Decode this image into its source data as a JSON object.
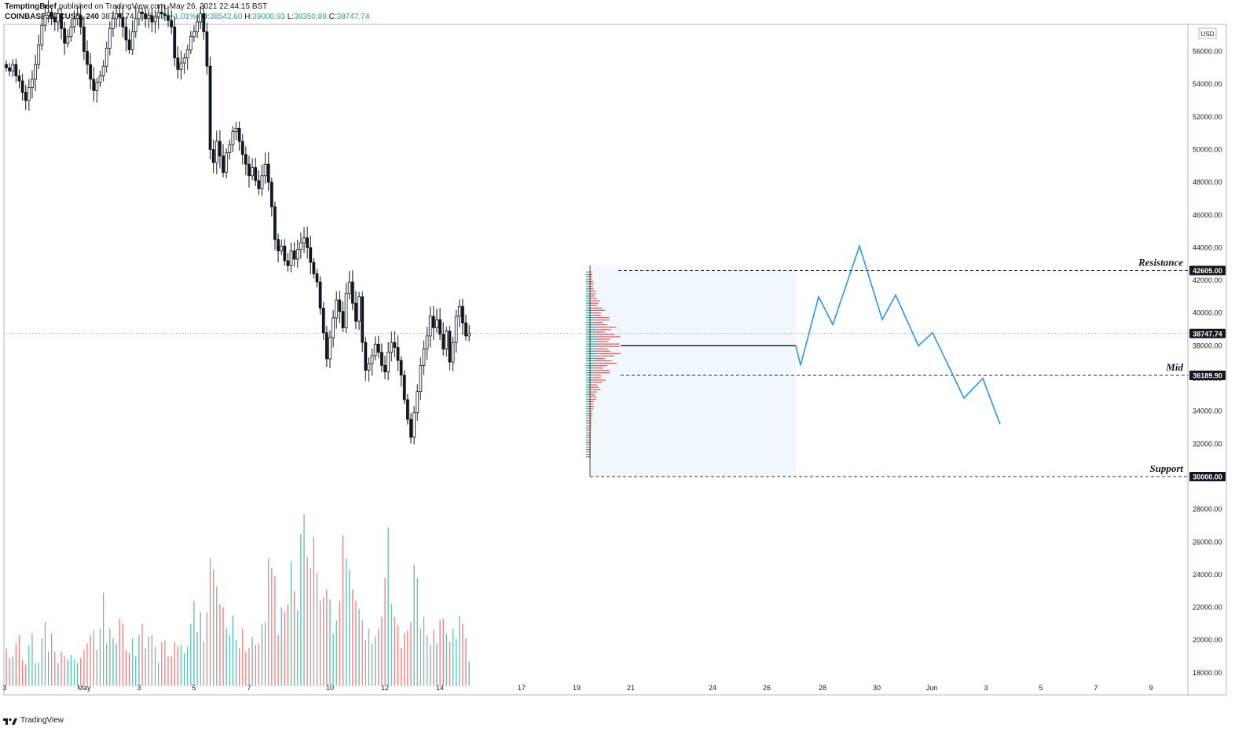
{
  "header": {
    "author": "TemptingBeef",
    "published": "published on TradingView.com, May 26, 2021 22:44:15 BST",
    "symbol": "COINBASE:BTCUSD, 240",
    "last": "38747.74",
    "change": "+385.93 (+1.01%)",
    "o_label": "O:",
    "o_value": "38542.60",
    "h_label": "H:",
    "h_value": "39000.93",
    "l_label": "L:",
    "l_value": "38350.89",
    "c_label": "C:",
    "c_value": "38747.74"
  },
  "footer": {
    "brand": "TradingView"
  },
  "colors": {
    "up": "#26a69a",
    "down": "#ef5350",
    "candle": "#131722",
    "projection": "#2196f3",
    "box_fill": "#e3f2fd"
  },
  "chart_data": {
    "type": "candlestick",
    "currency_label": "USD",
    "ylim": [
      17200,
      58600
    ],
    "price_ticks": [
      "56000.00",
      "54000.00",
      "52000.00",
      "50000.00",
      "48000.00",
      "46000.00",
      "44000.00",
      "42000.00",
      "40000.00",
      "38000.00",
      "36000.00",
      "34000.00",
      "32000.00",
      "28000.00",
      "26000.00",
      "24000.00",
      "22000.00",
      "20000.00",
      "18000.00"
    ],
    "x_ticks": [
      "3",
      "May",
      "3",
      "5",
      "7",
      "10",
      "12",
      "14",
      "17",
      "19",
      "21",
      "24",
      "26",
      "28",
      "30",
      "Jun",
      "3",
      "5",
      "7",
      "9"
    ],
    "price_labels": [
      {
        "label": "42605.00",
        "value": 42605,
        "style": "dark"
      },
      {
        "label": "38747.74",
        "value": 38747.74,
        "style": "dark"
      },
      {
        "label": "36189.90",
        "value": 36189.9,
        "style": "dark"
      },
      {
        "label": "30000.00",
        "value": 30000,
        "style": "dark"
      }
    ],
    "levels": [
      {
        "name": "Resistance",
        "value": 42605
      },
      {
        "name": "Mid",
        "value": 36189.9
      },
      {
        "name": "Support",
        "value": 30000
      }
    ],
    "price_close_series": [
      55000,
      54800,
      55200,
      54500,
      54200,
      53500,
      53000,
      53800,
      54300,
      55200,
      56400,
      57600,
      58200,
      58400,
      58100,
      57800,
      58300,
      57400,
      56500,
      56900,
      57500,
      58000,
      58200,
      57500,
      56000,
      55200,
      54300,
      53600,
      54100,
      54500,
      55100,
      56200,
      57400,
      58000,
      58300,
      58100,
      57500,
      56700,
      56100,
      57200,
      58000,
      58400,
      58300,
      58000,
      58200,
      57800,
      58100,
      58400,
      58300,
      58200,
      57900,
      57500,
      55600,
      54900,
      55300,
      55600,
      56100,
      56900,
      57200,
      57800,
      58300,
      57200,
      55100,
      50000,
      49200,
      50500,
      49600,
      48600,
      49800,
      50300,
      51100,
      51300,
      50500,
      49700,
      49100,
      48400,
      48900,
      48100,
      47600,
      48400,
      49100,
      48000,
      46500,
      44500,
      43800,
      44100,
      43200,
      42900,
      43800,
      43300,
      43900,
      44300,
      44600,
      44000,
      43100,
      42400,
      41900,
      40300,
      38800,
      37200,
      38500,
      39700,
      40800,
      40100,
      39100,
      41200,
      41900,
      40600,
      39500,
      41000,
      38200,
      36500,
      36900,
      37400,
      38100,
      37600,
      36800,
      36400,
      37600,
      38200,
      37900,
      37100,
      36200,
      34700,
      33500,
      32400,
      33900,
      35200,
      36800,
      37800,
      38600,
      39800,
      39100,
      39600,
      38700,
      37800,
      38900,
      37000,
      38200,
      39800,
      40400,
      39400,
      38600,
      38750
    ],
    "volume_series": [
      19500,
      18900,
      19000,
      19800,
      20300,
      18800,
      18500,
      19700,
      20400,
      18600,
      18600,
      20100,
      21100,
      19300,
      20400,
      19300,
      18600,
      19300,
      19000,
      18800,
      19100,
      18800,
      18600,
      18900,
      19400,
      19800,
      20300,
      20600,
      19400,
      20700,
      22900,
      19800,
      20700,
      20100,
      19800,
      21300,
      21000,
      19400,
      19200,
      20100,
      19000,
      20300,
      21000,
      19500,
      20200,
      20300,
      19600,
      18600,
      19900,
      20000,
      19000,
      19000,
      19900,
      19600,
      19700,
      19200,
      19600,
      21000,
      22400,
      20500,
      21700,
      19900,
      21700,
      25000,
      24300,
      23300,
      22200,
      22000,
      20700,
      20300,
      21500,
      20000,
      19500,
      20700,
      19300,
      19500,
      20200,
      19700,
      19800,
      21000,
      21100,
      25000,
      24400,
      23900,
      20300,
      22000,
      21700,
      22200,
      24800,
      23000,
      21800,
      26500,
      27700,
      25100,
      24400,
      26300,
      24100,
      22400,
      22600,
      23100,
      22500,
      20400,
      21200,
      22400,
      26400,
      25000,
      24300,
      23100,
      22400,
      21900,
      21200,
      20000,
      20700,
      19800,
      20200,
      20700,
      21400,
      23800,
      26900,
      22200,
      21400,
      20900,
      19500,
      20400,
      20600,
      21100,
      24600,
      23800,
      20700,
      21400,
      20300,
      19700,
      20600,
      19800,
      21200,
      21300,
      20400,
      19900,
      20700,
      20100,
      21500,
      21000,
      20100,
      18700
    ],
    "volume_profile": {
      "top_value": 42500,
      "bottom_value": 31200
    },
    "range_box": {
      "top": 42900,
      "bottom": 30000
    },
    "poc": 38000,
    "projection": [
      [
        38000,
        38000
      ],
      [
        36800,
        36800
      ],
      [
        41000,
        41000
      ],
      [
        39300,
        39300
      ],
      [
        44100,
        44100
      ],
      [
        39600,
        39600
      ],
      [
        41100,
        41100
      ],
      [
        38000,
        38000
      ],
      [
        38800,
        38800
      ],
      [
        34800,
        34800
      ],
      [
        36000,
        36000
      ],
      [
        33200,
        33200
      ]
    ]
  }
}
